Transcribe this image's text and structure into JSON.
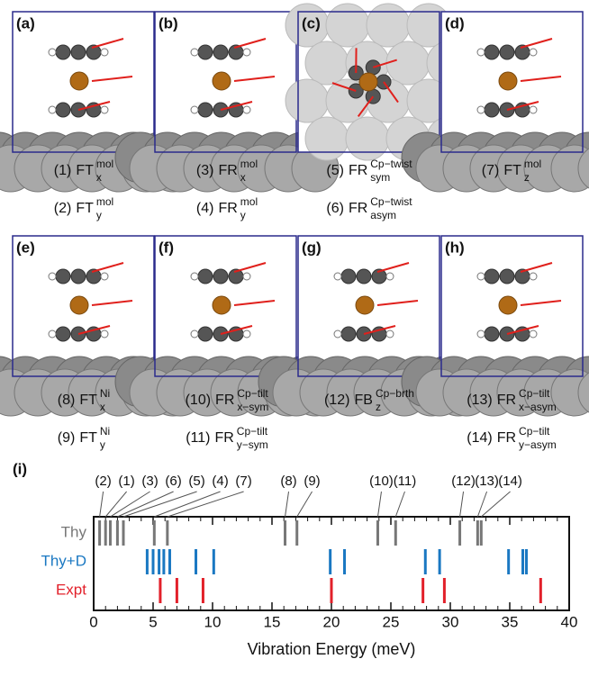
{
  "panels": [
    "(a)",
    "(b)",
    "(c)",
    "(d)",
    "(e)",
    "(f)",
    "(g)",
    "(h)"
  ],
  "modes": [
    [
      {
        "index": "(1)",
        "name": "FT",
        "sup": "mol",
        "sub": "x"
      },
      {
        "index": "(3)",
        "name": "FR",
        "sup": "mol",
        "sub": "x"
      },
      {
        "index": "(5)",
        "name": "FR",
        "sup": "Cp−twist",
        "sub": "sym"
      },
      {
        "index": "(7)",
        "name": "FT",
        "sup": "mol",
        "sub": "z"
      }
    ],
    [
      {
        "index": "(2)",
        "name": "FT",
        "sup": "mol",
        "sub": "y"
      },
      {
        "index": "(4)",
        "name": "FR",
        "sup": "mol",
        "sub": "y"
      },
      {
        "index": "(6)",
        "name": "FR",
        "sup": "Cp−twist",
        "sub": "asym"
      },
      null
    ],
    [
      {
        "index": "(8)",
        "name": "FT",
        "sup": "Ni",
        "sub": "x"
      },
      {
        "index": "(10)",
        "name": "FR",
        "sup": "Cp−tilt",
        "sub": "x−sym"
      },
      {
        "index": "(12)",
        "name": "FB",
        "sup": "Cp−brth",
        "sub": "z"
      },
      {
        "index": "(13)",
        "name": "FR",
        "sup": "Cp−tilt",
        "sub": "x−asym"
      }
    ],
    [
      {
        "index": "(9)",
        "name": "FT",
        "sup": "Ni",
        "sub": "y"
      },
      {
        "index": "(11)",
        "name": "FR",
        "sup": "Cp−tilt",
        "sub": "y−sym"
      },
      null,
      {
        "index": "(14)",
        "name": "FR",
        "sup": "Cp−tilt",
        "sub": "y−asym"
      }
    ]
  ],
  "chart_data": {
    "type": "tick",
    "panel_label": "(i)",
    "x_label": "Vibration Energy (meV)",
    "xlim": [
      0,
      40
    ],
    "xticks": [
      0,
      5,
      10,
      15,
      20,
      25,
      30,
      35,
      40
    ],
    "xticks_minor": [
      0,
      1,
      2,
      3,
      4,
      5,
      6,
      7,
      8,
      9,
      10,
      11,
      12,
      13,
      14,
      15,
      16,
      17,
      18,
      19,
      20,
      21,
      22,
      23,
      24,
      25,
      26,
      27,
      28,
      29,
      30,
      31,
      32,
      33,
      34,
      35,
      36,
      37,
      38,
      39,
      40
    ],
    "series": [
      {
        "name": "Thy",
        "color": "#777777",
        "values": [
          0.5,
          1.0,
          1.4,
          2.0,
          2.5,
          5.1,
          6.2,
          16.1,
          17.1,
          23.9,
          25.4,
          30.8,
          32.3,
          32.6
        ],
        "labels": [
          "(2)",
          "(1)",
          "(3)",
          "(6)",
          "(5)",
          "(4)",
          "(7)",
          "(8)",
          "(9)",
          "(10)",
          "(11)",
          "(12)",
          "(13)",
          "(14)"
        ]
      },
      {
        "name": "Thy+D",
        "color": "#1a78c2",
        "values": [
          4.5,
          5.0,
          5.5,
          5.9,
          6.4,
          8.6,
          10.1,
          19.9,
          21.1,
          27.9,
          29.1,
          34.9,
          36.1,
          36.4
        ]
      },
      {
        "name": "Expt",
        "color": "#e2202a",
        "values": [
          5.6,
          7.0,
          9.2,
          20.0,
          27.7,
          29.5,
          37.6
        ]
      }
    ]
  }
}
